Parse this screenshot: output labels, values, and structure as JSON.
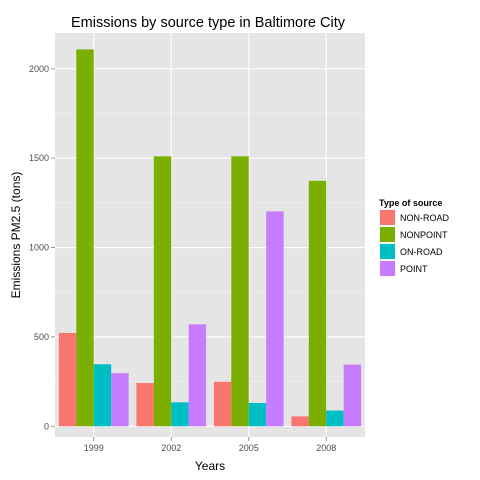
{
  "chart_data": {
    "type": "bar",
    "title": "Emissions by source type in Baltimore City",
    "xlabel": "Years",
    "ylabel": "Emissions PM2.5 (tons)",
    "categories": [
      "1999",
      "2002",
      "2005",
      "2008"
    ],
    "ylim": [
      -60,
      2200
    ],
    "yticks": [
      0,
      500,
      1000,
      1500,
      2000
    ],
    "grid": true,
    "legend": {
      "title": "Type of source",
      "position": "right"
    },
    "series": [
      {
        "name": "NON-ROAD",
        "color": "#F8766D",
        "values": [
          522,
          242,
          249,
          55
        ]
      },
      {
        "name": "NONPOINT",
        "color": "#7CAE00",
        "values": [
          2108,
          1510,
          1510,
          1373
        ]
      },
      {
        "name": "ON-ROAD",
        "color": "#00BFC4",
        "values": [
          347,
          134,
          130,
          88
        ]
      },
      {
        "name": "POINT",
        "color": "#C77CFF",
        "values": [
          297,
          570,
          1202,
          345
        ]
      }
    ]
  },
  "colors": {
    "panel_background": "#E5E5E5",
    "grid_major": "#FFFFFF",
    "grid_minor": "#F2F2F2"
  }
}
